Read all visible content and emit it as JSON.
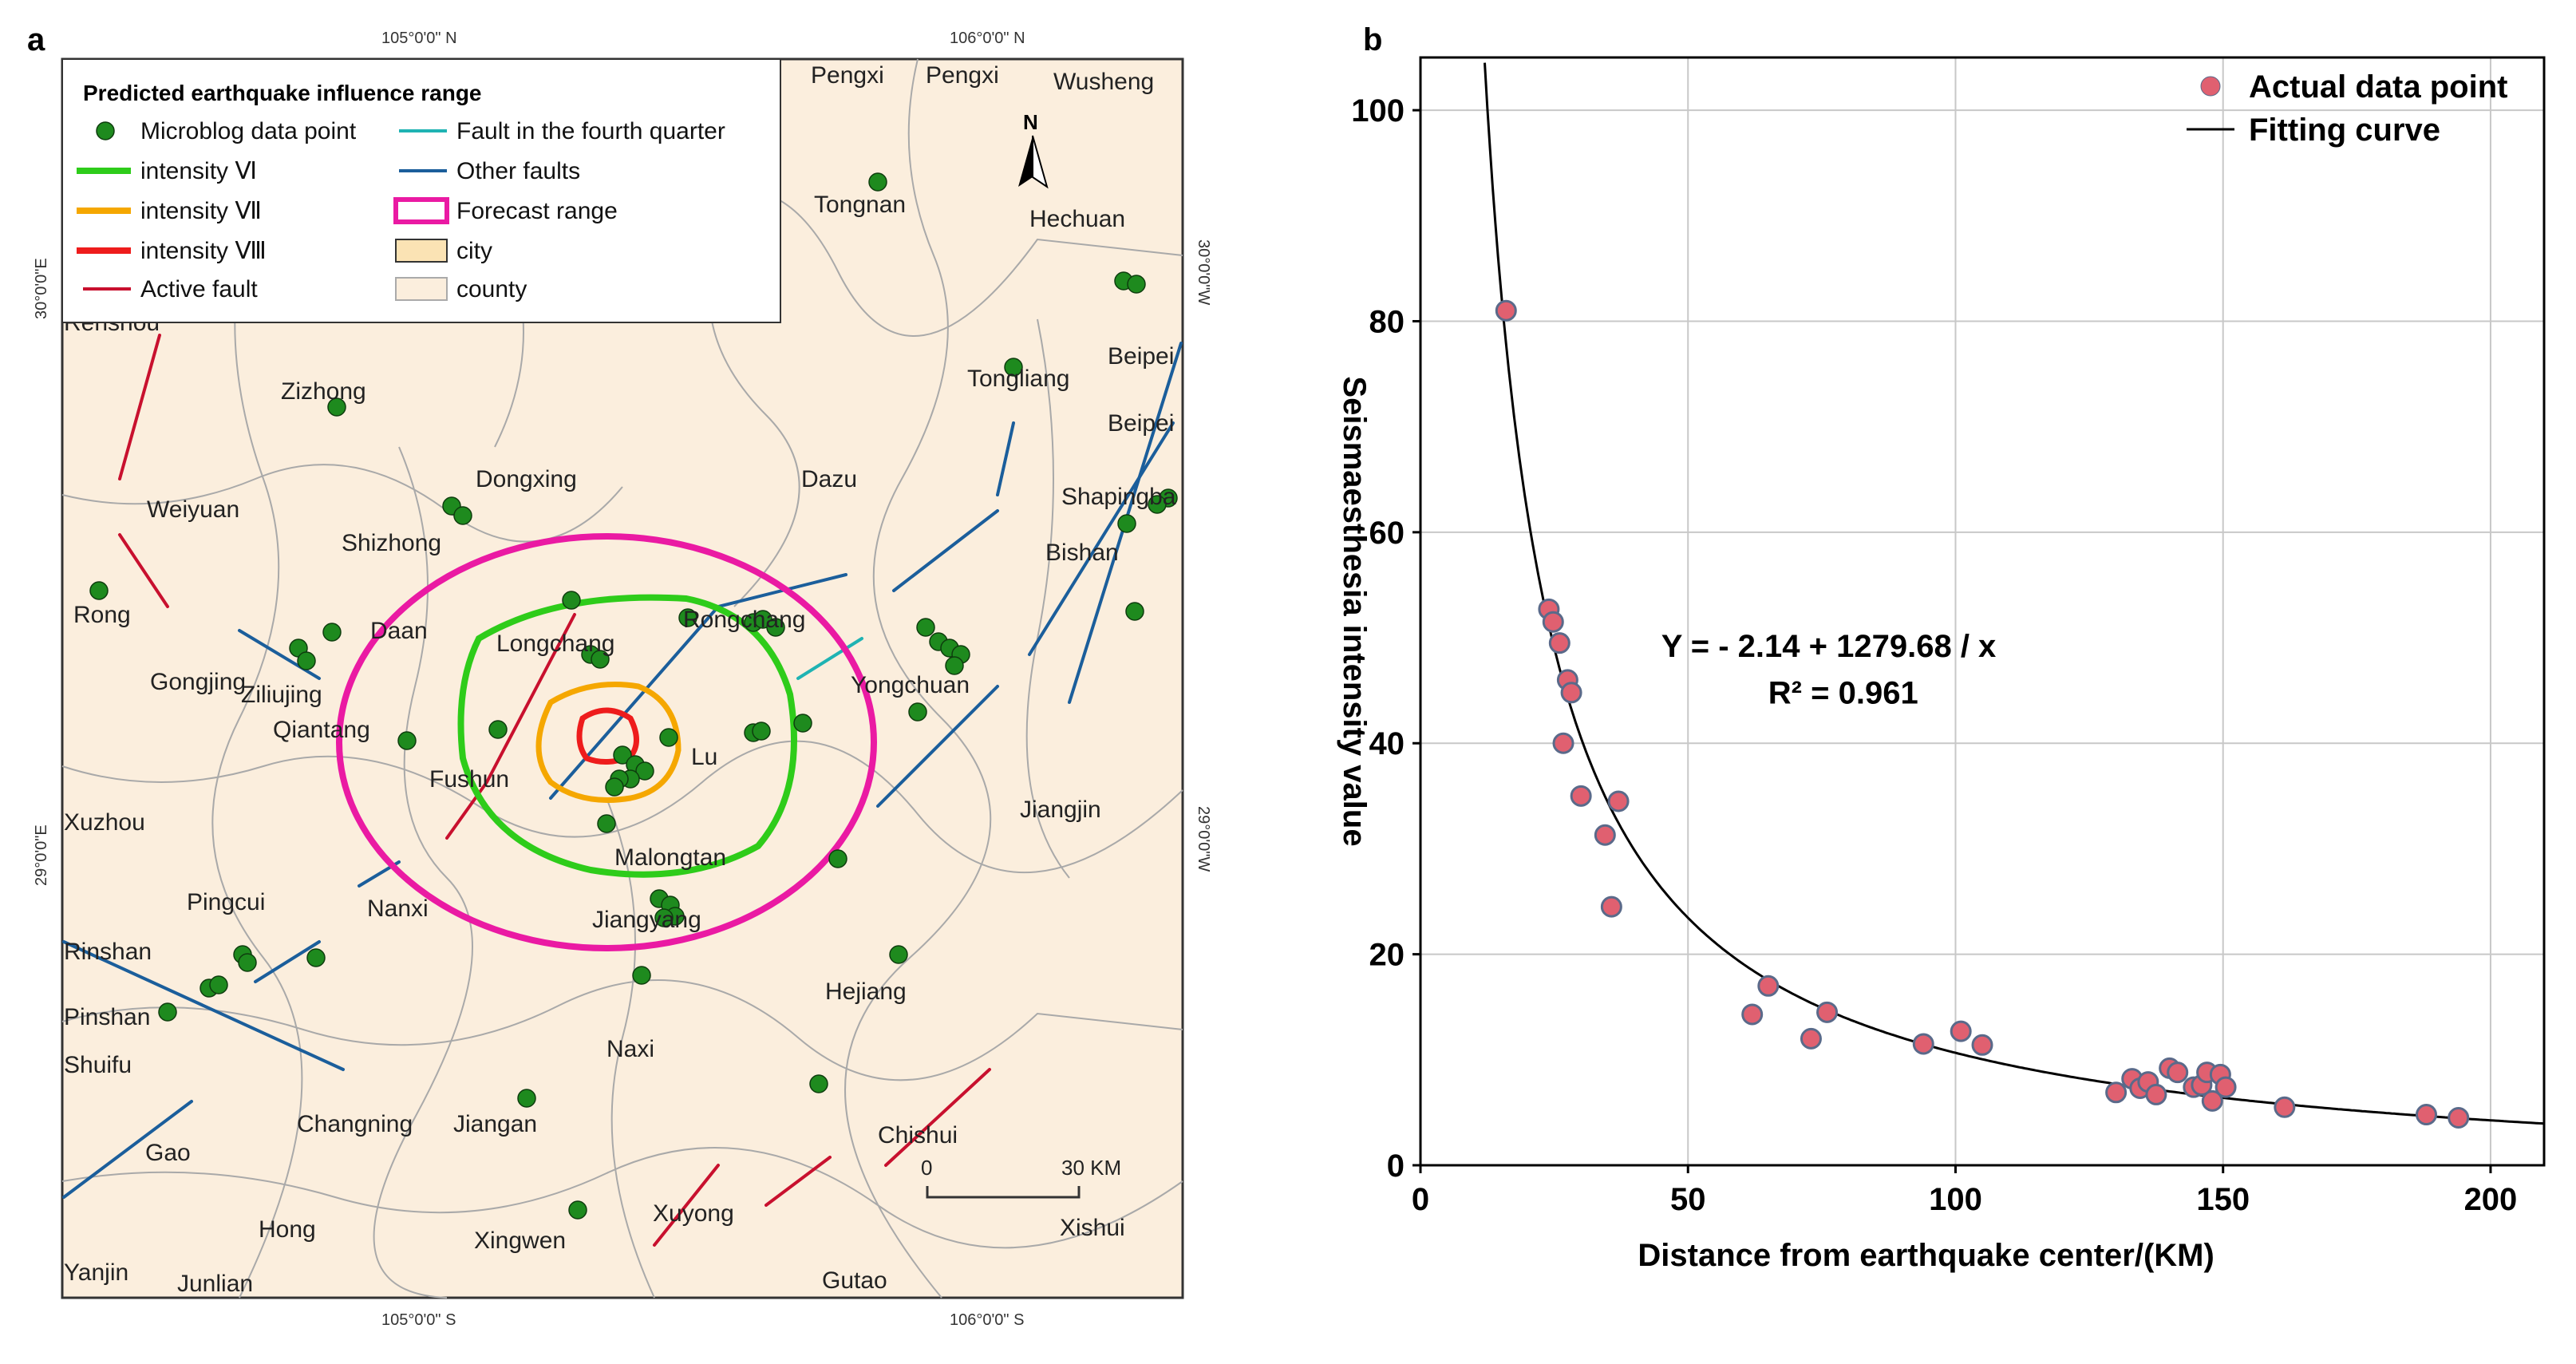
{
  "panel_a": {
    "letter": "a",
    "grid_labels": {
      "top": [
        "105°0'0\" N",
        "106°0'0\" N"
      ],
      "bottom": [
        "105°0'0\" S",
        "106°0'0\" S"
      ],
      "left": [
        "30°0'0\"E",
        "29°0'0\"E"
      ],
      "right": [
        "30°0'0\"W",
        "29°0'0\"W"
      ]
    },
    "legend": {
      "title": "Predicted earthquake influence range",
      "items": [
        {
          "label": "Microblog data point",
          "color": "#1e8a1e"
        },
        {
          "label": "intensity Ⅵ",
          "color": "#2ecc1a"
        },
        {
          "label": "intensity Ⅶ",
          "color": "#f5a700"
        },
        {
          "label": "intensity Ⅷ",
          "color": "#ee1c1c"
        },
        {
          "label": "Active fault",
          "color": "#c8102e"
        },
        {
          "label": "Fault in the fourth quarter",
          "color": "#1fb3b3"
        },
        {
          "label": "Other faults",
          "color": "#1b5e9b"
        },
        {
          "label": "Forecast range",
          "color": "#ea1aa3"
        },
        {
          "label": "city",
          "color": "#fbe3b4"
        },
        {
          "label": "county",
          "color": "#fbeedd"
        }
      ]
    },
    "place_names": [
      "Pengxi",
      "Pengxi",
      "Wusheng",
      "Tongnan",
      "Hechuan",
      "Renshou",
      "Zizhong",
      "Tongliang",
      "Beipei",
      "Beipei",
      "Dongxing",
      "Dazu",
      "Weiyuan",
      "Shapingba",
      "Shizhong",
      "Bishan",
      "Rong",
      "Daan",
      "Longchang",
      "Rongchang",
      "Gongjing",
      "Ziliujing",
      "Yongchuan",
      "Qiantang",
      "Fushun",
      "Lu",
      "Jiangjin",
      "Xuzhou",
      "Malongtan",
      "Pingcui",
      "Nanxi",
      "Jiangyang",
      "Rinshan",
      "Hejiang",
      "Pinshan",
      "Shuifu",
      "Naxi",
      "Chishui",
      "Gao",
      "Changning",
      "Jiangan",
      "Hong",
      "Xingwen",
      "Xuyong",
      "Xishui",
      "Yanjin",
      "Junlian",
      "Gutao"
    ],
    "north_label": "N",
    "scale_bar": {
      "start": "0",
      "end": "30 KM"
    }
  },
  "panel_b": {
    "letter": "b",
    "legend": {
      "actual": "Actual data point",
      "fit": "Fitting curve"
    },
    "equation": "Y = - 2.14 + 1279.68 / x",
    "r_squared": "R² = 0.961"
  },
  "chart_data": {
    "type": "scatter",
    "xlabel": "Distance from earthquake center/(KM)",
    "ylabel": "Seismaesthesia intensity value",
    "xlim": [
      0,
      210
    ],
    "ylim": [
      0,
      105
    ],
    "xticks": [
      0,
      50,
      100,
      150,
      200
    ],
    "yticks": [
      0,
      20,
      40,
      60,
      80,
      100
    ],
    "grid": true,
    "legend_position": "top-right",
    "marker_fill": "#e06070",
    "marker_edge": "#5a6a8a",
    "line_color": "#000000",
    "series": [
      {
        "name": "Actual data point",
        "points": [
          [
            16,
            81
          ],
          [
            24,
            52.7
          ],
          [
            24.8,
            51.5
          ],
          [
            26,
            49.5
          ],
          [
            27.5,
            46
          ],
          [
            28.2,
            44.8
          ],
          [
            26.7,
            40
          ],
          [
            30,
            35
          ],
          [
            34.5,
            31.3
          ],
          [
            37,
            34.5
          ],
          [
            35.7,
            24.5
          ],
          [
            62,
            14.3
          ],
          [
            65,
            17
          ],
          [
            73,
            12
          ],
          [
            76,
            14.5
          ],
          [
            94,
            11.5
          ],
          [
            101,
            12.7
          ],
          [
            105,
            11.4
          ],
          [
            130,
            6.9
          ],
          [
            133,
            8.2
          ],
          [
            134.5,
            7.3
          ],
          [
            136,
            7.9
          ],
          [
            137.5,
            6.7
          ],
          [
            140,
            9.2
          ],
          [
            141.5,
            8.8
          ],
          [
            144.5,
            7.4
          ],
          [
            146,
            7.6
          ],
          [
            147,
            8.8
          ],
          [
            148,
            6.1
          ],
          [
            149.5,
            8.6
          ],
          [
            150.5,
            7.4
          ],
          [
            161.5,
            5.5
          ],
          [
            188,
            4.8
          ],
          [
            194,
            4.5
          ]
        ]
      },
      {
        "name": "Fitting curve",
        "formula": {
          "a": -2.14,
          "b": 1279.68
        }
      }
    ]
  }
}
